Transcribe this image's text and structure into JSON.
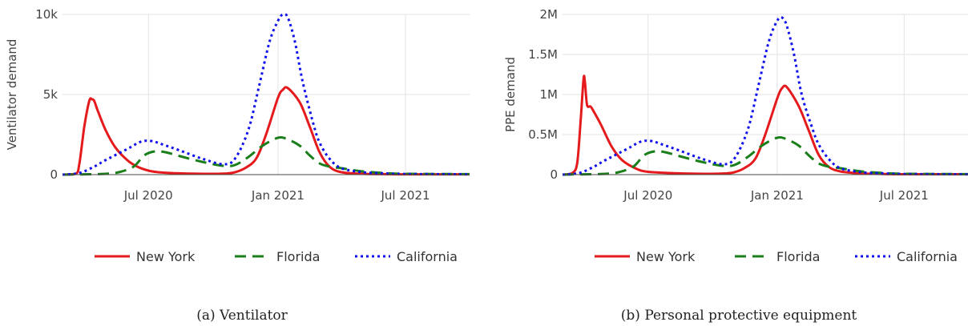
{
  "chart_data": [
    {
      "type": "line",
      "caption": "(a) Ventilator",
      "ylabel": "Ventilator demand",
      "xlabel": "",
      "xlim": [
        "2020-03-01",
        "2021-09-30"
      ],
      "ylim": [
        0,
        10000
      ],
      "yticks": [
        0,
        5000,
        10000
      ],
      "yticklabels": [
        "0",
        "5k",
        "10k"
      ],
      "xticks": [
        "2020-07-01",
        "2021-01-01",
        "2021-07-01"
      ],
      "xticklabels": [
        "Jul 2020",
        "Jan 2021",
        "Jul 2021"
      ],
      "grid": true,
      "legend_position": "bottom-center",
      "series": [
        {
          "name": "New York",
          "color": "#e41a1c",
          "dash": "solid",
          "x": [
            "2020-03-01",
            "2020-03-20",
            "2020-03-25",
            "2020-04-01",
            "2020-04-08",
            "2020-04-12",
            "2020-04-15",
            "2020-04-20",
            "2020-05-01",
            "2020-05-15",
            "2020-06-01",
            "2020-06-15",
            "2020-07-01",
            "2020-07-15",
            "2020-08-01",
            "2020-09-01",
            "2020-10-01",
            "2020-10-20",
            "2020-11-01",
            "2020-11-15",
            "2020-12-01",
            "2020-12-15",
            "2021-01-01",
            "2021-01-08",
            "2021-01-15",
            "2021-02-01",
            "2021-02-15",
            "2021-03-01",
            "2021-03-15",
            "2021-04-01",
            "2021-05-01",
            "2021-06-01",
            "2021-07-01",
            "2021-09-30"
          ],
          "y": [
            0,
            50,
            700,
            3000,
            4600,
            4700,
            4600,
            4000,
            2800,
            1700,
            900,
            500,
            250,
            150,
            100,
            60,
            50,
            70,
            150,
            400,
            1000,
            2500,
            4800,
            5300,
            5400,
            4500,
            3000,
            1400,
            500,
            150,
            50,
            30,
            20,
            20
          ]
        },
        {
          "name": "Florida",
          "color": "#1a7f1a",
          "dash": "dash",
          "x": [
            "2020-03-01",
            "2020-04-01",
            "2020-05-01",
            "2020-05-20",
            "2020-06-10",
            "2020-06-25",
            "2020-07-10",
            "2020-07-25",
            "2020-08-15",
            "2020-09-15",
            "2020-10-15",
            "2020-11-01",
            "2020-11-20",
            "2020-12-10",
            "2021-01-01",
            "2021-01-15",
            "2021-02-01",
            "2021-02-15",
            "2021-03-01",
            "2021-03-15",
            "2021-04-01",
            "2021-04-15",
            "2021-05-01",
            "2021-06-01",
            "2021-07-01",
            "2021-09-30"
          ],
          "y": [
            0,
            20,
            50,
            150,
            500,
            1200,
            1450,
            1400,
            1150,
            800,
            550,
            600,
            1100,
            1800,
            2300,
            2200,
            1800,
            1200,
            700,
            500,
            400,
            300,
            200,
            100,
            50,
            30
          ]
        },
        {
          "name": "California",
          "color": "#1111ee",
          "dash": "dot",
          "x": [
            "2020-03-01",
            "2020-03-25",
            "2020-04-15",
            "2020-05-01",
            "2020-06-01",
            "2020-06-20",
            "2020-07-05",
            "2020-07-20",
            "2020-08-15",
            "2020-09-15",
            "2020-10-15",
            "2020-11-01",
            "2020-11-20",
            "2020-12-05",
            "2020-12-20",
            "2021-01-01",
            "2021-01-08",
            "2021-01-15",
            "2021-01-25",
            "2021-02-05",
            "2021-02-20",
            "2021-03-01",
            "2021-03-15",
            "2021-04-01",
            "2021-05-01",
            "2021-06-01",
            "2021-07-01",
            "2021-09-30"
          ],
          "y": [
            0,
            100,
            500,
            900,
            1600,
            2050,
            2100,
            1900,
            1500,
            1000,
            650,
            1000,
            2800,
            5500,
            8300,
            9600,
            10000,
            9800,
            8300,
            5800,
            3200,
            2000,
            1000,
            400,
            150,
            80,
            40,
            20
          ]
        }
      ]
    },
    {
      "type": "line",
      "caption": "(b) Personal protective equipment",
      "ylabel": "PPE demand",
      "xlabel": "",
      "xlim": [
        "2020-03-01",
        "2021-09-30"
      ],
      "ylim": [
        0,
        2000000
      ],
      "yticks": [
        0,
        500000,
        1000000,
        1500000,
        2000000
      ],
      "yticklabels": [
        "0",
        "0.5M",
        "1M",
        "1.5M",
        "2M"
      ],
      "xticks": [
        "2020-07-01",
        "2021-01-01",
        "2021-07-01"
      ],
      "xticklabels": [
        "Jul 2020",
        "Jan 2021",
        "Jul 2021"
      ],
      "grid": true,
      "legend_position": "bottom-center",
      "series": [
        {
          "name": "New York",
          "color": "#e41a1c",
          "dash": "solid",
          "x": [
            "2020-03-01",
            "2020-03-15",
            "2020-03-22",
            "2020-03-27",
            "2020-03-31",
            "2020-04-02",
            "2020-04-05",
            "2020-04-10",
            "2020-04-15",
            "2020-04-25",
            "2020-05-10",
            "2020-05-25",
            "2020-06-15",
            "2020-07-01",
            "2020-08-01",
            "2020-09-01",
            "2020-10-01",
            "2020-10-20",
            "2020-11-01",
            "2020-11-15",
            "2020-12-01",
            "2020-12-15",
            "2021-01-01",
            "2021-01-08",
            "2021-01-15",
            "2021-02-01",
            "2021-02-15",
            "2021-03-01",
            "2021-03-15",
            "2021-04-01",
            "2021-05-01",
            "2021-06-01",
            "2021-07-01",
            "2021-09-30"
          ],
          "y": [
            0,
            20000,
            150000,
            700000,
            1200000,
            1150000,
            870000,
            850000,
            780000,
            620000,
            350000,
            180000,
            70000,
            35000,
            20000,
            12000,
            10000,
            15000,
            30000,
            80000,
            200000,
            500000,
            950000,
            1080000,
            1090000,
            850000,
            550000,
            250000,
            100000,
            40000,
            15000,
            8000,
            5000,
            5000
          ]
        },
        {
          "name": "Florida",
          "color": "#1a7f1a",
          "dash": "dash",
          "x": [
            "2020-03-01",
            "2020-04-01",
            "2020-05-01",
            "2020-05-20",
            "2020-06-10",
            "2020-06-25",
            "2020-07-10",
            "2020-07-25",
            "2020-08-15",
            "2020-09-15",
            "2020-10-15",
            "2020-11-01",
            "2020-11-20",
            "2020-12-10",
            "2021-01-01",
            "2021-01-15",
            "2021-02-01",
            "2021-02-15",
            "2021-03-01",
            "2021-03-15",
            "2021-04-01",
            "2021-04-15",
            "2021-05-01",
            "2021-06-01",
            "2021-07-01",
            "2021-09-30"
          ],
          "y": [
            0,
            4000,
            10000,
            30000,
            100000,
            240000,
            290000,
            280000,
            230000,
            160000,
            110000,
            120000,
            220000,
            360000,
            460000,
            440000,
            360000,
            240000,
            140000,
            100000,
            80000,
            60000,
            40000,
            20000,
            10000,
            6000
          ]
        },
        {
          "name": "California",
          "color": "#1111ee",
          "dash": "dot",
          "x": [
            "2020-03-01",
            "2020-03-25",
            "2020-04-15",
            "2020-05-01",
            "2020-06-01",
            "2020-06-20",
            "2020-07-05",
            "2020-07-20",
            "2020-08-15",
            "2020-09-15",
            "2020-10-15",
            "2020-11-01",
            "2020-11-20",
            "2020-12-05",
            "2020-12-20",
            "2021-01-01",
            "2021-01-08",
            "2021-01-15",
            "2021-01-25",
            "2021-02-05",
            "2021-02-20",
            "2021-03-01",
            "2021-03-15",
            "2021-04-01",
            "2021-05-01",
            "2021-06-01",
            "2021-07-01",
            "2021-09-30"
          ],
          "y": [
            0,
            20000,
            100000,
            180000,
            320000,
            410000,
            420000,
            380000,
            300000,
            200000,
            130000,
            200000,
            560000,
            1100000,
            1660000,
            1920000,
            1960000,
            1850000,
            1500000,
            1000000,
            580000,
            380000,
            200000,
            80000,
            30000,
            16000,
            8000,
            4000
          ]
        }
      ]
    }
  ]
}
